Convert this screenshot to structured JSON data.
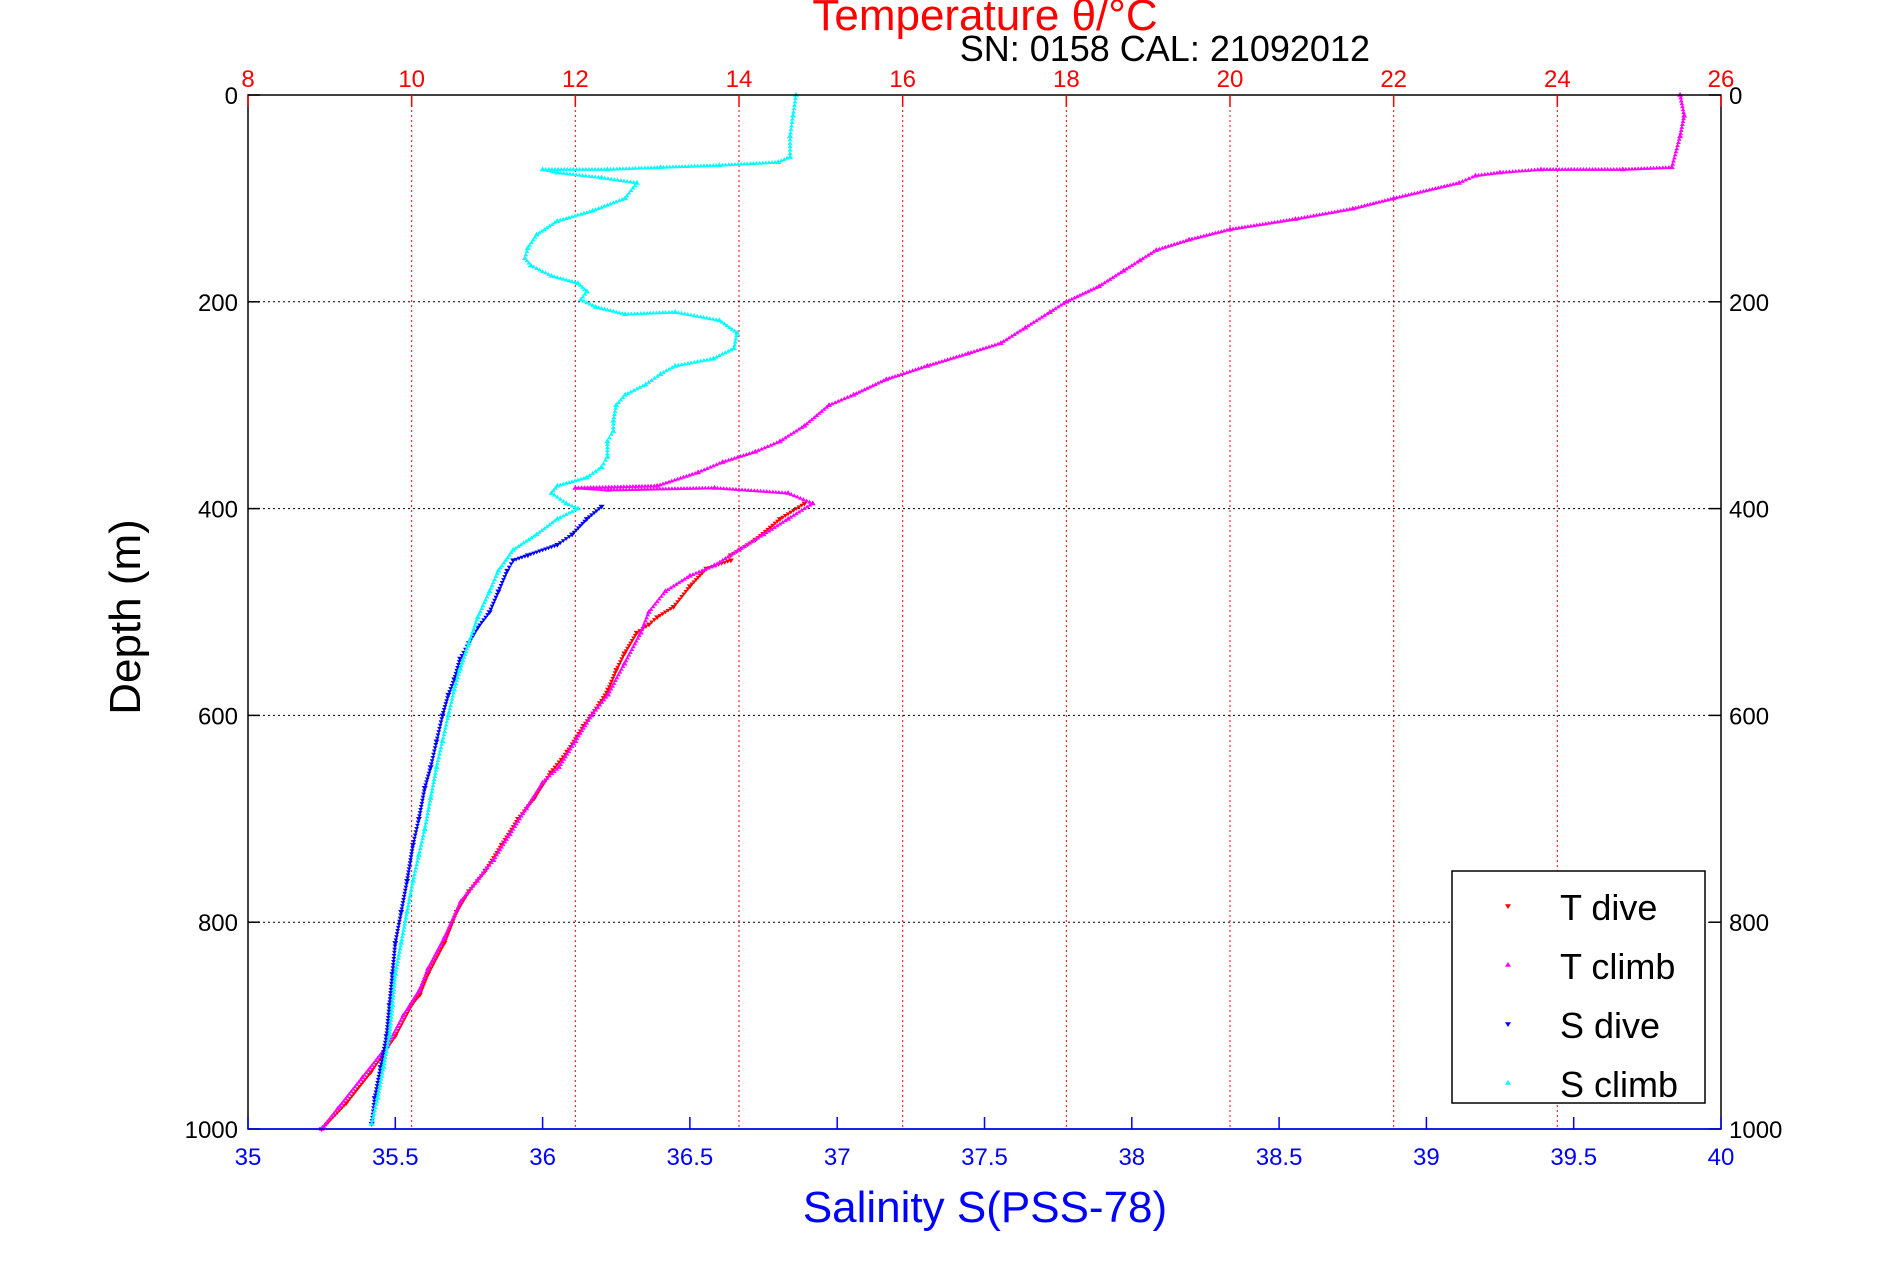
{
  "chart_data": {
    "type": "scatter",
    "title": "Temperature θ/°C",
    "subtitle": "SN: 0158  CAL: 21092012",
    "xlabel_bottom": "Salinity S(PSS-78)",
    "xlabel_top": "Temperature θ/°C",
    "ylabel": "Depth (m)",
    "ylim": [
      1000,
      0
    ],
    "xlim_bottom": [
      35,
      40
    ],
    "xlim_top": [
      8,
      26
    ],
    "yticks": [
      "0",
      "200",
      "400",
      "600",
      "800",
      "1000"
    ],
    "xticks_bottom": [
      "35",
      "35.5",
      "36",
      "36.5",
      "37",
      "37.5",
      "38",
      "38.5",
      "39",
      "39.5",
      "40"
    ],
    "xticks_top": [
      "8",
      "10",
      "12",
      "14",
      "16",
      "18",
      "20",
      "22",
      "24",
      "26"
    ],
    "grid": true,
    "legend_position": "bottom-right",
    "colors": {
      "t_dive": "#ff0000",
      "t_climb": "#ff00ff",
      "s_dive": "#0000ff",
      "s_climb": "#00ffff",
      "temp_axis": "#ff0000",
      "sal_axis": "#0000ff",
      "text": "#000000"
    },
    "series": [
      {
        "name": "T dive",
        "axis": "top",
        "marker": "triangle-down",
        "points": [
          [
            14.8,
            395
          ],
          [
            14.5,
            410
          ],
          [
            14.2,
            430
          ],
          [
            13.9,
            445
          ],
          [
            13.9,
            450
          ],
          [
            13.6,
            458
          ],
          [
            13.4,
            475
          ],
          [
            13.2,
            495
          ],
          [
            13.0,
            505
          ],
          [
            12.9,
            512
          ],
          [
            12.75,
            520
          ],
          [
            12.6,
            540
          ],
          [
            12.5,
            556
          ],
          [
            12.4,
            575
          ],
          [
            12.3,
            588
          ],
          [
            12.1,
            610
          ],
          [
            11.9,
            635
          ],
          [
            11.7,
            655
          ],
          [
            11.5,
            680
          ],
          [
            11.3,
            700
          ],
          [
            11.1,
            725
          ],
          [
            10.9,
            750
          ],
          [
            10.7,
            770
          ],
          [
            10.55,
            790
          ],
          [
            10.4,
            820
          ],
          [
            10.2,
            850
          ],
          [
            10.1,
            870
          ],
          [
            10.0,
            880
          ],
          [
            9.8,
            910
          ],
          [
            9.5,
            945
          ],
          [
            9.2,
            975
          ],
          [
            8.9,
            1000
          ]
        ]
      },
      {
        "name": "T climb",
        "axis": "top",
        "marker": "triangle-up",
        "points": [
          [
            25.5,
            0
          ],
          [
            25.55,
            20
          ],
          [
            25.5,
            40
          ],
          [
            25.4,
            70
          ],
          [
            24.8,
            72
          ],
          [
            23.8,
            72
          ],
          [
            23.3,
            75
          ],
          [
            23.0,
            78
          ],
          [
            22.8,
            85
          ],
          [
            22.0,
            100
          ],
          [
            21.5,
            110
          ],
          [
            20.8,
            120
          ],
          [
            20.0,
            130
          ],
          [
            19.5,
            140
          ],
          [
            19.1,
            150
          ],
          [
            18.9,
            160
          ],
          [
            18.7,
            170
          ],
          [
            18.4,
            185
          ],
          [
            18.0,
            200
          ],
          [
            17.8,
            210
          ],
          [
            17.5,
            225
          ],
          [
            17.2,
            240
          ],
          [
            16.8,
            250
          ],
          [
            16.3,
            262
          ],
          [
            15.8,
            275
          ],
          [
            15.4,
            290
          ],
          [
            15.1,
            300
          ],
          [
            14.8,
            320
          ],
          [
            14.5,
            335
          ],
          [
            14.2,
            345
          ],
          [
            13.8,
            355
          ],
          [
            13.5,
            365
          ],
          [
            13.0,
            378
          ],
          [
            12.0,
            380
          ],
          [
            12.4,
            382
          ],
          [
            13.7,
            380
          ],
          [
            14.6,
            385
          ],
          [
            14.9,
            395
          ],
          [
            14.6,
            410
          ],
          [
            14.3,
            425
          ],
          [
            14.0,
            440
          ],
          [
            13.7,
            455
          ],
          [
            13.4,
            465
          ],
          [
            13.1,
            480
          ],
          [
            12.9,
            500
          ],
          [
            12.8,
            520
          ],
          [
            12.6,
            550
          ],
          [
            12.4,
            580
          ],
          [
            12.2,
            600
          ],
          [
            12.0,
            625
          ],
          [
            11.8,
            650
          ],
          [
            11.6,
            665
          ],
          [
            11.4,
            690
          ],
          [
            11.2,
            715
          ],
          [
            11.0,
            740
          ],
          [
            10.8,
            760
          ],
          [
            10.6,
            780
          ],
          [
            10.4,
            815
          ],
          [
            10.2,
            845
          ],
          [
            10.1,
            865
          ],
          [
            9.9,
            890
          ],
          [
            9.7,
            920
          ],
          [
            9.4,
            950
          ],
          [
            9.1,
            980
          ],
          [
            8.9,
            1000
          ]
        ]
      },
      {
        "name": "S dive",
        "axis": "bottom",
        "marker": "triangle-down",
        "points": [
          [
            36.2,
            398
          ],
          [
            36.15,
            410
          ],
          [
            36.1,
            425
          ],
          [
            36.05,
            435
          ],
          [
            35.95,
            445
          ],
          [
            35.9,
            450
          ],
          [
            35.88,
            460
          ],
          [
            35.85,
            480
          ],
          [
            35.82,
            500
          ],
          [
            35.78,
            515
          ],
          [
            35.75,
            530
          ],
          [
            35.72,
            545
          ],
          [
            35.7,
            565
          ],
          [
            35.68,
            580
          ],
          [
            35.66,
            600
          ],
          [
            35.64,
            625
          ],
          [
            35.62,
            650
          ],
          [
            35.6,
            670
          ],
          [
            35.58,
            700
          ],
          [
            35.56,
            725
          ],
          [
            35.54,
            760
          ],
          [
            35.52,
            790
          ],
          [
            35.5,
            820
          ],
          [
            35.49,
            850
          ],
          [
            35.48,
            880
          ],
          [
            35.47,
            910
          ],
          [
            35.45,
            940
          ],
          [
            35.43,
            970
          ],
          [
            35.42,
            995
          ]
        ]
      },
      {
        "name": "S climb",
        "axis": "bottom",
        "marker": "triangle-up",
        "points": [
          [
            36.86,
            0
          ],
          [
            36.85,
            20
          ],
          [
            36.84,
            40
          ],
          [
            36.84,
            60
          ],
          [
            36.8,
            65
          ],
          [
            36.6,
            68
          ],
          [
            36.4,
            70
          ],
          [
            36.22,
            72
          ],
          [
            36.0,
            72
          ],
          [
            36.05,
            75
          ],
          [
            36.2,
            80
          ],
          [
            36.32,
            85
          ],
          [
            36.28,
            100
          ],
          [
            36.17,
            112
          ],
          [
            36.05,
            122
          ],
          [
            35.98,
            135
          ],
          [
            35.95,
            148
          ],
          [
            35.94,
            158
          ],
          [
            35.96,
            165
          ],
          [
            36.03,
            175
          ],
          [
            36.12,
            182
          ],
          [
            36.15,
            190
          ],
          [
            36.13,
            198
          ],
          [
            36.18,
            205
          ],
          [
            36.28,
            212
          ],
          [
            36.45,
            210
          ],
          [
            36.6,
            218
          ],
          [
            36.66,
            230
          ],
          [
            36.65,
            245
          ],
          [
            36.58,
            255
          ],
          [
            36.45,
            262
          ],
          [
            36.4,
            270
          ],
          [
            36.35,
            280
          ],
          [
            36.28,
            290
          ],
          [
            36.25,
            300
          ],
          [
            36.24,
            315
          ],
          [
            36.24,
            325
          ],
          [
            36.22,
            335
          ],
          [
            36.22,
            350
          ],
          [
            36.2,
            360
          ],
          [
            36.15,
            370
          ],
          [
            36.05,
            378
          ],
          [
            36.03,
            385
          ],
          [
            36.08,
            395
          ],
          [
            36.12,
            400
          ],
          [
            36.05,
            410
          ],
          [
            35.98,
            425
          ],
          [
            35.9,
            440
          ],
          [
            35.85,
            460
          ],
          [
            35.82,
            480
          ],
          [
            35.78,
            505
          ],
          [
            35.75,
            530
          ],
          [
            35.72,
            555
          ],
          [
            35.7,
            575
          ],
          [
            35.68,
            600
          ],
          [
            35.66,
            625
          ],
          [
            35.64,
            650
          ],
          [
            35.62,
            680
          ],
          [
            35.6,
            710
          ],
          [
            35.58,
            735
          ],
          [
            35.56,
            760
          ],
          [
            35.54,
            790
          ],
          [
            35.52,
            820
          ],
          [
            35.5,
            850
          ],
          [
            35.49,
            880
          ],
          [
            35.48,
            910
          ],
          [
            35.46,
            940
          ],
          [
            35.44,
            970
          ],
          [
            35.42,
            995
          ]
        ]
      }
    ]
  }
}
